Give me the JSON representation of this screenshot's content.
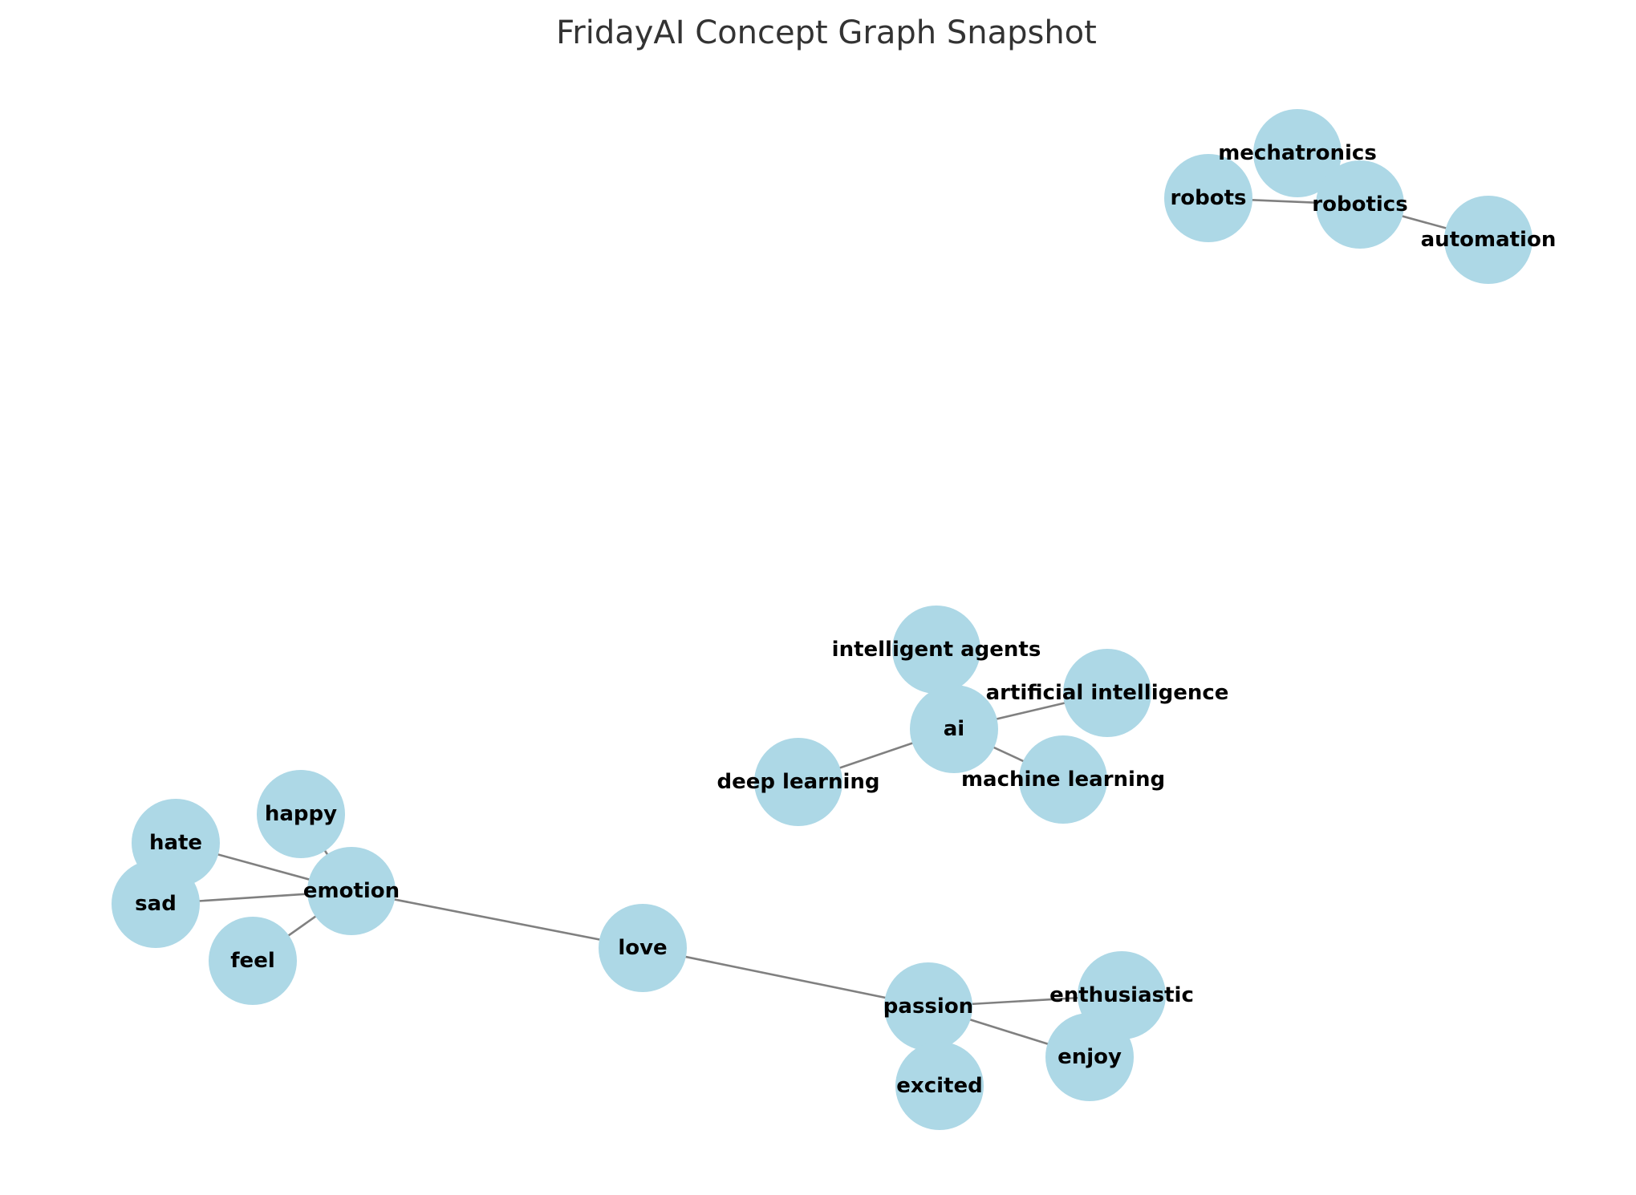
{
  "title": "FridayAI Concept Graph Snapshot",
  "colors": {
    "node_fill": "#add8e6",
    "edge": "#808080",
    "label": "#000000",
    "title": "#333333",
    "background": "#ffffff"
  },
  "graph": {
    "nodes": [
      {
        "id": "mechatronics",
        "label": "mechatronics"
      },
      {
        "id": "robots",
        "label": "robots"
      },
      {
        "id": "robotics",
        "label": "robotics"
      },
      {
        "id": "automation",
        "label": "automation"
      },
      {
        "id": "intelligent agents",
        "label": "intelligent agents"
      },
      {
        "id": "artificial intelligence",
        "label": "artificial intelligence"
      },
      {
        "id": "ai",
        "label": "ai"
      },
      {
        "id": "deep learning",
        "label": "deep learning"
      },
      {
        "id": "machine learning",
        "label": "machine learning"
      },
      {
        "id": "happy",
        "label": "happy"
      },
      {
        "id": "hate",
        "label": "hate"
      },
      {
        "id": "emotion",
        "label": "emotion"
      },
      {
        "id": "sad",
        "label": "sad"
      },
      {
        "id": "feel",
        "label": "feel"
      },
      {
        "id": "love",
        "label": "love"
      },
      {
        "id": "passion",
        "label": "passion"
      },
      {
        "id": "enthusiastic",
        "label": "enthusiastic"
      },
      {
        "id": "enjoy",
        "label": "enjoy"
      },
      {
        "id": "excited",
        "label": "excited"
      }
    ],
    "edges": [
      {
        "source": "robots",
        "target": "robotics"
      },
      {
        "source": "robotics",
        "target": "mechatronics"
      },
      {
        "source": "robotics",
        "target": "automation"
      },
      {
        "source": "ai",
        "target": "intelligent agents"
      },
      {
        "source": "ai",
        "target": "artificial intelligence"
      },
      {
        "source": "ai",
        "target": "deep learning"
      },
      {
        "source": "ai",
        "target": "machine learning"
      },
      {
        "source": "emotion",
        "target": "happy"
      },
      {
        "source": "emotion",
        "target": "hate"
      },
      {
        "source": "emotion",
        "target": "sad"
      },
      {
        "source": "emotion",
        "target": "feel"
      },
      {
        "source": "emotion",
        "target": "love"
      },
      {
        "source": "love",
        "target": "passion"
      },
      {
        "source": "passion",
        "target": "enthusiastic"
      },
      {
        "source": "passion",
        "target": "enjoy"
      },
      {
        "source": "passion",
        "target": "excited"
      }
    ]
  }
}
